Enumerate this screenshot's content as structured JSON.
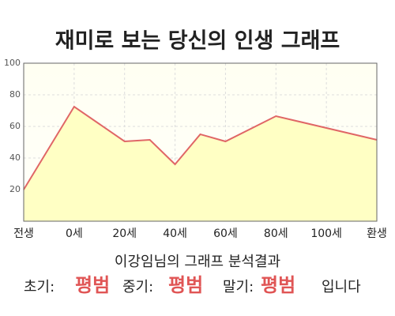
{
  "chart_data": {
    "type": "area",
    "title": "재미로 보는 당신의 인생 그래프",
    "x": [
      -20,
      0,
      20,
      30,
      40,
      50,
      60,
      80,
      100,
      120
    ],
    "values": [
      20,
      72.5,
      50.5,
      51.5,
      36,
      55,
      50.5,
      66.5,
      59,
      51.5
    ],
    "color": "#e06666",
    "fill": "#ffffc4",
    "xlim": [
      -20,
      120
    ],
    "xticks": [
      {
        "value": -20,
        "label": "전생"
      },
      {
        "value": 0,
        "label": "0세"
      },
      {
        "value": 20,
        "label": "20세"
      },
      {
        "value": 40,
        "label": "40세"
      },
      {
        "value": 60,
        "label": "60세"
      },
      {
        "value": 80,
        "label": "80세"
      },
      {
        "value": 100,
        "label": "100세"
      },
      {
        "value": 120,
        "label": "환생"
      }
    ],
    "ylim": [
      0,
      100
    ],
    "yticks": [
      20,
      40,
      60,
      80,
      100
    ],
    "grid": true
  },
  "result": {
    "heading": "이강임님의 그래프 분석결과",
    "phases": [
      {
        "label": "초기:",
        "value": "평범"
      },
      {
        "label": "중기:",
        "value": "평범"
      },
      {
        "label": "말기:",
        "value": "평범"
      }
    ],
    "ending": "입니다"
  }
}
